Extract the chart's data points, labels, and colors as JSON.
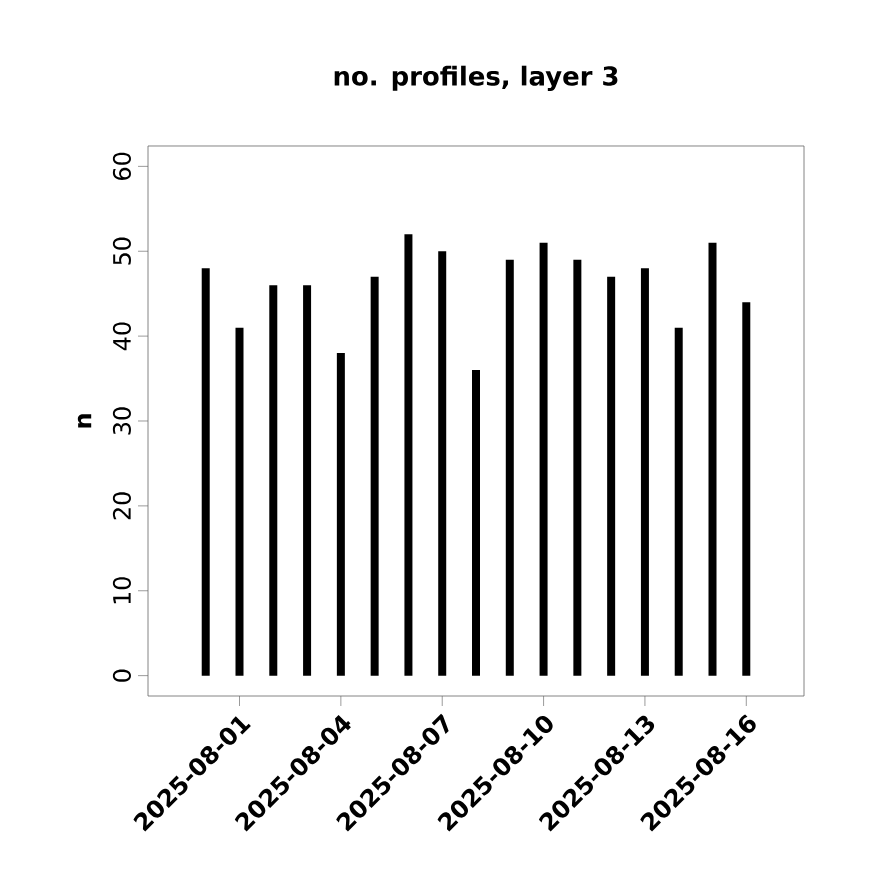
{
  "chart_data": {
    "type": "bar",
    "title": "no. profiles, layer 3",
    "ylabel": "n",
    "x": [
      "2025-07-31",
      "2025-08-01",
      "2025-08-02",
      "2025-08-03",
      "2025-08-04",
      "2025-08-05",
      "2025-08-06",
      "2025-08-07",
      "2025-08-08",
      "2025-08-09",
      "2025-08-10",
      "2025-08-11",
      "2025-08-12",
      "2025-08-13",
      "2025-08-14",
      "2025-08-15",
      "2025-08-16"
    ],
    "values": [
      48,
      41,
      46,
      46,
      38,
      47,
      52,
      50,
      36,
      49,
      51,
      49,
      47,
      48,
      41,
      51,
      44
    ],
    "color": "#000000",
    "xlim": [
      "2025-07-29T07:00",
      "2025-08-17T17:00"
    ],
    "xticks": [
      "2025-08-01",
      "2025-08-04",
      "2025-08-07",
      "2025-08-10",
      "2025-08-13",
      "2025-08-16"
    ],
    "ylim": [
      -2.4,
      62.4
    ],
    "yticks": [
      0,
      10,
      20,
      30,
      40,
      50,
      60
    ]
  }
}
